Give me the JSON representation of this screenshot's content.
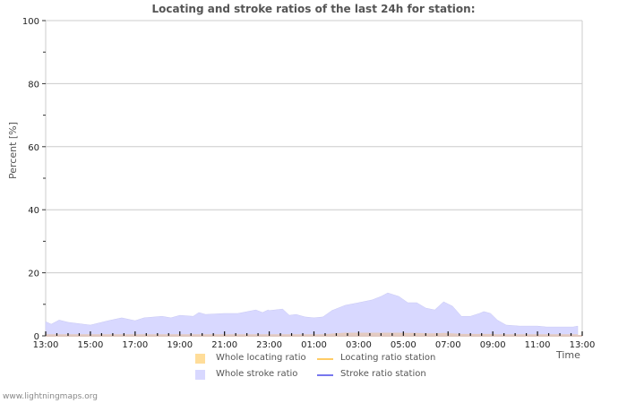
{
  "title": "Locating and stroke ratios of the last 24h for station:",
  "footer": "www.lightningmaps.org",
  "colors": {
    "whole_locating_ratio": "#ffdd99",
    "whole_stroke_ratio": "#d8d8ff",
    "locating_ratio_station": "#ffcc66",
    "stroke_ratio_station": "#7777ee",
    "grid": "#cccccc",
    "text": "#555555"
  },
  "axes": {
    "ylabel": "Percent   [%]",
    "xlabel": "Time"
  },
  "legend": {
    "items": [
      {
        "label": "Whole locating ratio",
        "type": "area"
      },
      {
        "label": "Locating ratio station",
        "type": "line"
      },
      {
        "label": "Whole stroke ratio",
        "type": "area"
      },
      {
        "label": "Stroke ratio station",
        "type": "line"
      }
    ]
  },
  "chart_data": {
    "type": "area",
    "title": "Locating and stroke ratios of the last 24h for station:",
    "xlabel": "Time",
    "ylabel": "Percent [%]",
    "ylim": [
      0,
      100
    ],
    "yticks": [
      0,
      20,
      40,
      60,
      80,
      100
    ],
    "xticks": [
      "13:00",
      "15:00",
      "17:00",
      "19:00",
      "21:00",
      "23:00",
      "01:00",
      "03:00",
      "05:00",
      "07:00",
      "09:00",
      "11:00",
      "13:00"
    ],
    "grid": true,
    "legend_position": "bottom",
    "x_hours": [
      0,
      0.25,
      0.6,
      1.0,
      2.0,
      2.8,
      3.4,
      4.0,
      4.4,
      5.2,
      5.6,
      6.0,
      6.6,
      6.85,
      7.15,
      8.0,
      8.6,
      9.4,
      9.7,
      9.95,
      10.0,
      10.6,
      10.9,
      11.2,
      11.6,
      12.0,
      12.4,
      12.8,
      13.4,
      14.0,
      14.6,
      15.0,
      15.3,
      15.8,
      16.2,
      16.6,
      17.0,
      17.4,
      17.8,
      18.2,
      18.6,
      19.0,
      19.4,
      19.6,
      19.9,
      20.2,
      20.6,
      21.2,
      22.0,
      22.4,
      23.6,
      23.8
    ],
    "series": [
      {
        "name": "Whole stroke ratio",
        "values": [
          4.5,
          3.7,
          5.0,
          4.3,
          3.4,
          4.8,
          5.7,
          4.8,
          5.7,
          6.2,
          5.7,
          6.5,
          6.2,
          7.4,
          6.8,
          7.1,
          7.1,
          8.2,
          7.4,
          8.2,
          8.0,
          8.5,
          6.5,
          6.8,
          6.0,
          5.7,
          6.0,
          8.0,
          9.7,
          10.5,
          11.4,
          12.5,
          13.6,
          12.5,
          10.5,
          10.5,
          8.8,
          8.2,
          10.8,
          9.4,
          6.2,
          6.2,
          7.1,
          7.7,
          7.1,
          5.0,
          3.4,
          3.1,
          3.1,
          2.8,
          2.8,
          3.1
        ]
      },
      {
        "name": "Whole locating ratio",
        "values": [
          0.5,
          0.5,
          0.5,
          0.5,
          0.5,
          0.5,
          0.5,
          0.5,
          0.5,
          0.5,
          0.5,
          0.5,
          0.5,
          0.5,
          0.5,
          0.5,
          0.5,
          0.5,
          0.5,
          0.5,
          0.5,
          0.5,
          0.5,
          0.5,
          0.5,
          0.5,
          0.5,
          0.7,
          1.0,
          1.0,
          1.0,
          1.0,
          1.0,
          1.0,
          0.9,
          0.9,
          0.8,
          0.8,
          0.9,
          0.8,
          0.6,
          0.6,
          0.6,
          0.6,
          0.6,
          0.5,
          0.5,
          0.5,
          0.5,
          0.5,
          0.5,
          0.5
        ]
      },
      {
        "name": "Locating ratio station",
        "values": []
      },
      {
        "name": "Stroke ratio station",
        "values": []
      }
    ]
  }
}
